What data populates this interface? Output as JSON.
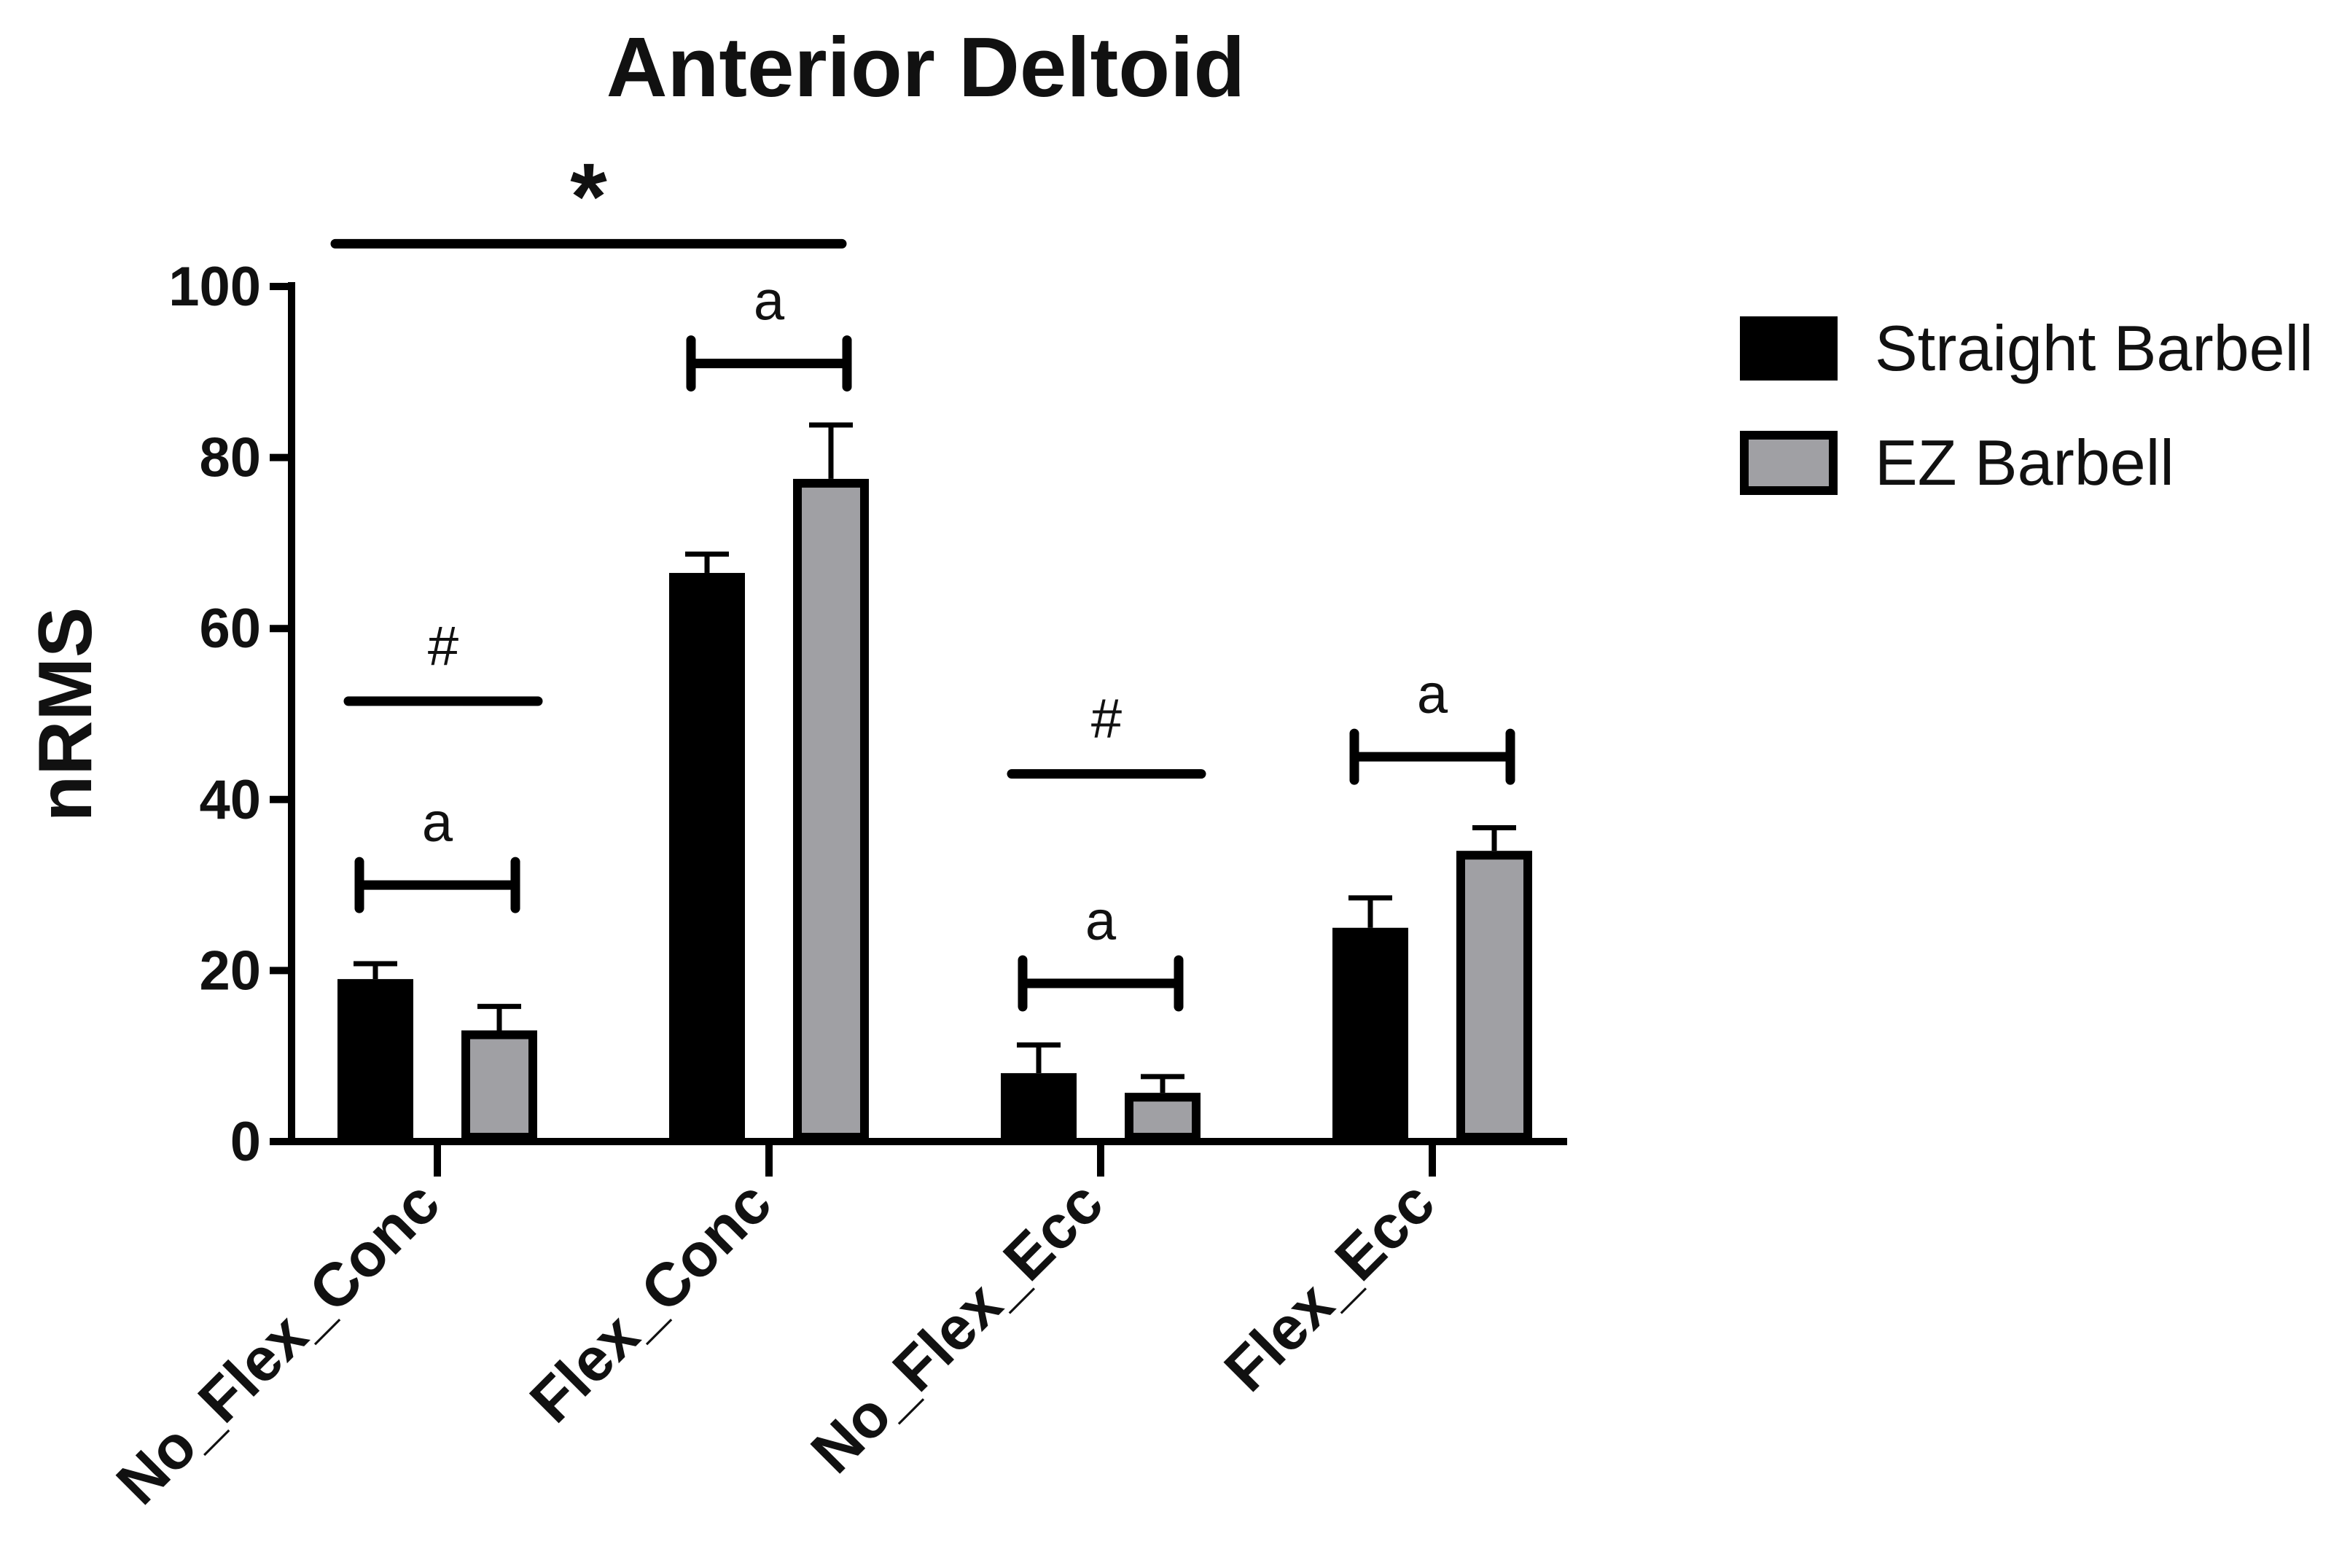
{
  "chart_data": {
    "type": "bar",
    "title": "Anterior Deltoid",
    "xlabel": "",
    "ylabel": "nRMS",
    "ylim": [
      0,
      100
    ],
    "yticks": [
      "0",
      "20",
      "40",
      "60",
      "80",
      "100"
    ],
    "categories": [
      "No_Flex_Conc",
      "Flex_Conc",
      "No_Flex_Ecc",
      "Flex_Ecc"
    ],
    "series": [
      {
        "name": "Straight Barbell",
        "color": "#000000",
        "values": [
          19,
          66.5,
          8,
          25
        ],
        "errors": [
          1.8,
          2.2,
          3.3,
          3.5
        ]
      },
      {
        "name": "EZ Barbell",
        "color": "#a0a0a4",
        "values": [
          13,
          77.5,
          5.7,
          34
        ],
        "errors": [
          2.8,
          6.3,
          1.9,
          2.7
        ]
      }
    ],
    "legend_position": "right",
    "annotations": [
      {
        "symbol": "*",
        "type": "line",
        "from_category": "No_Flex_Conc",
        "to_category": "Flex_Conc",
        "level": 105
      },
      {
        "symbol": "#",
        "type": "line",
        "category": "No_Flex_Conc",
        "level": 51.5
      },
      {
        "symbol": "a",
        "type": "bracket",
        "category": "No_Flex_Conc",
        "level": 30
      },
      {
        "symbol": "a",
        "type": "bracket",
        "category": "Flex_Conc",
        "level": 91
      },
      {
        "symbol": "#",
        "type": "line",
        "category": "No_Flex_Ecc",
        "level": 43
      },
      {
        "symbol": "a",
        "type": "bracket",
        "category": "No_Flex_Ecc",
        "level": 18.5
      },
      {
        "symbol": "a",
        "type": "bracket",
        "category": "Flex_Ecc",
        "level": 45
      }
    ]
  }
}
